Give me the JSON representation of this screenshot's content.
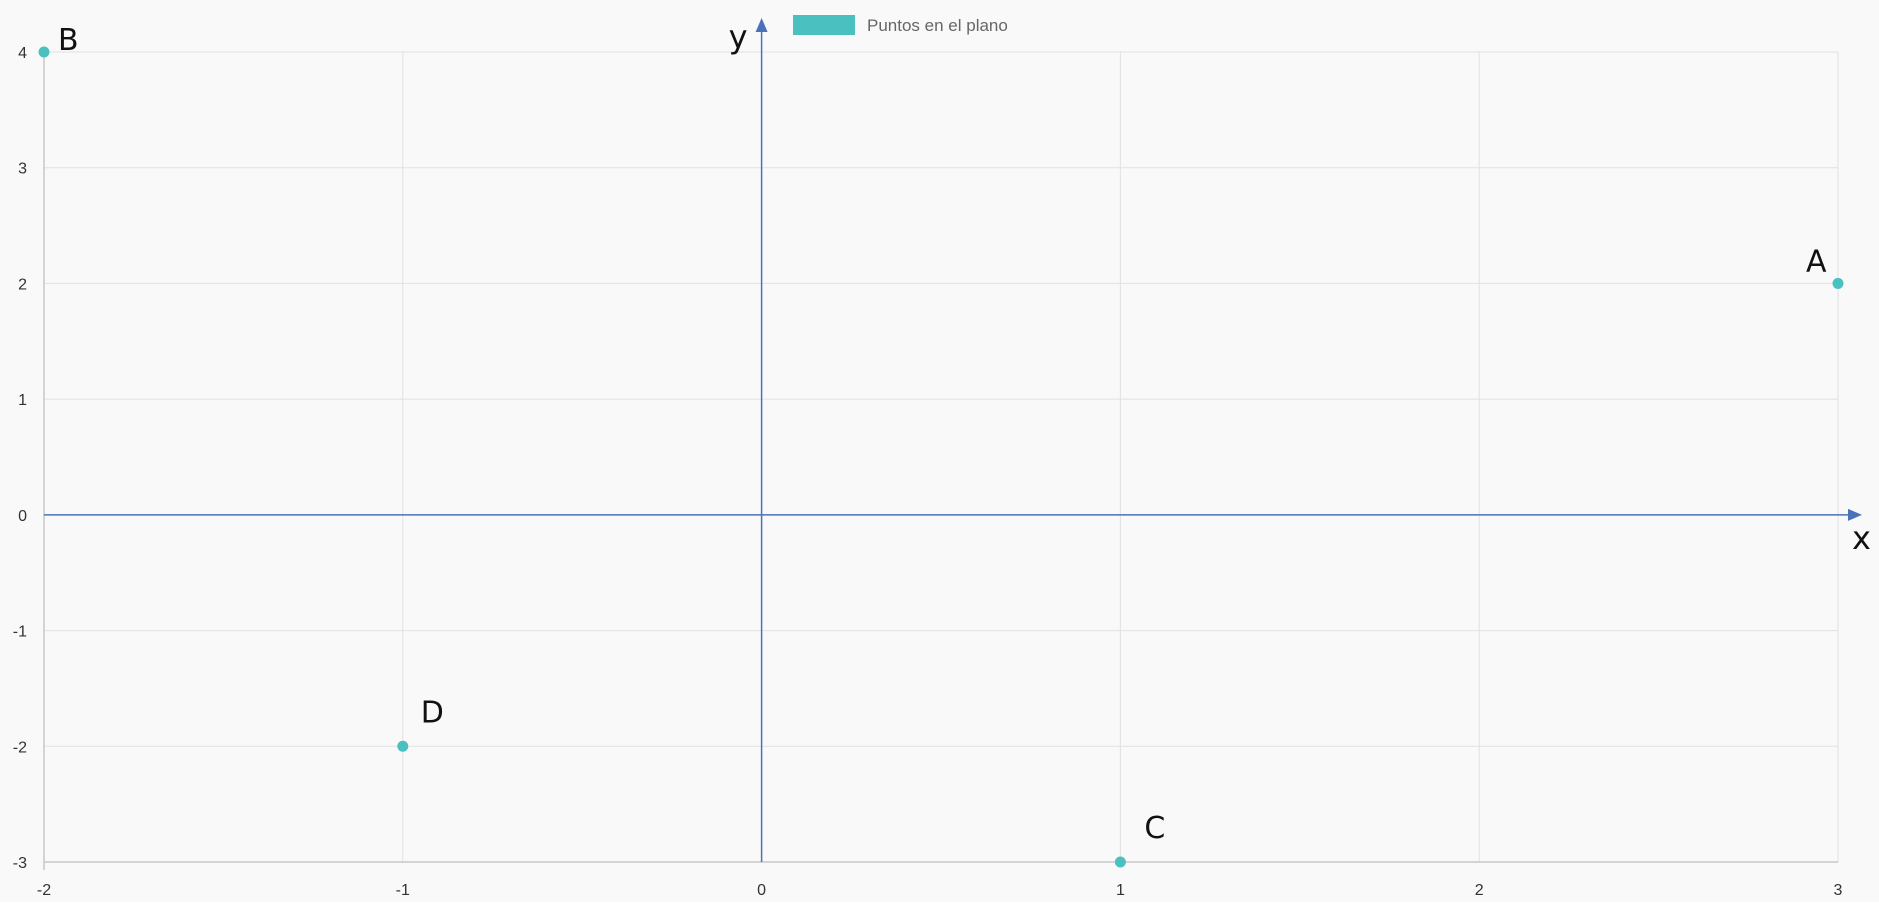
{
  "chart_data": {
    "type": "scatter",
    "legend": {
      "label": "Puntos en el plano",
      "position": "top-center",
      "color": "#4bc0c0"
    },
    "xlim": [
      -2,
      3
    ],
    "ylim": [
      -3,
      4
    ],
    "x_ticks": [
      -2,
      -1,
      0,
      1,
      2,
      3
    ],
    "y_ticks": [
      -3,
      -2,
      -1,
      0,
      1,
      2,
      3,
      4
    ],
    "x_axis_name": "x",
    "y_axis_name": "y",
    "grid": true,
    "point_color": "#4bc0c0",
    "axis_color": "#4a72b8",
    "grid_color": "#e1e1e1",
    "background": "#f9f9f9",
    "series": [
      {
        "name": "Puntos en el plano",
        "points": [
          {
            "label": "A",
            "x": 3,
            "y": 2
          },
          {
            "label": "B",
            "x": -2,
            "y": 4
          },
          {
            "label": "C",
            "x": 1,
            "y": -3
          },
          {
            "label": "D",
            "x": -1,
            "y": -2
          }
        ]
      }
    ]
  }
}
